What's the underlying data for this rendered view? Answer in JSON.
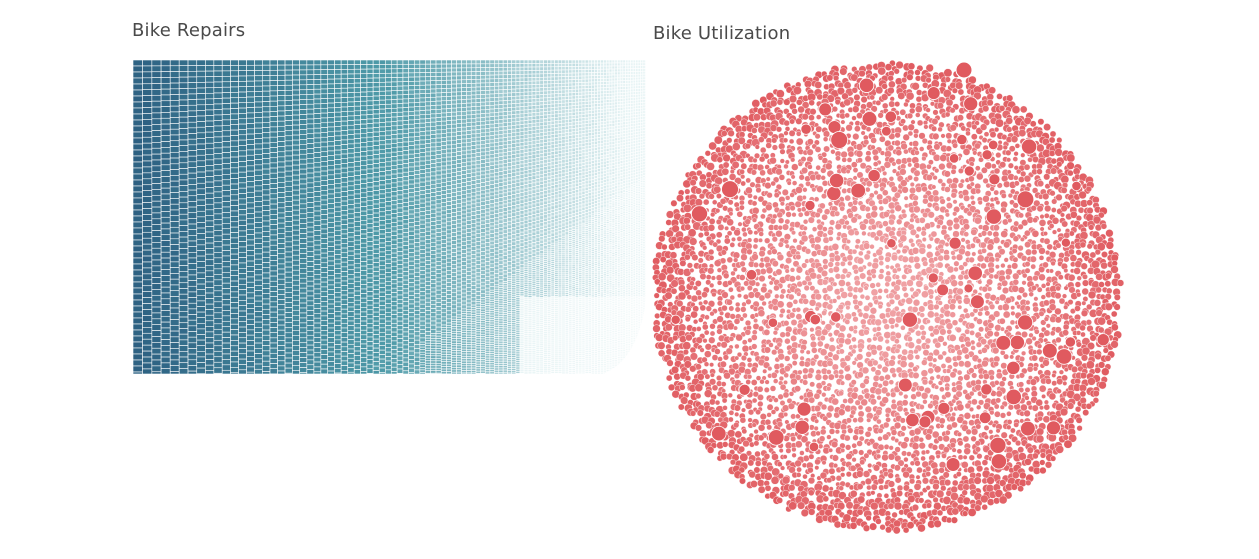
{
  "colors": {
    "background": "#ffffff",
    "title_text": "#4a4a4a",
    "repairs_dark": "#2e6283",
    "repairs_mid": "#4e9aa8",
    "repairs_light": "#e8f4f5",
    "cell_border": "#ffffff",
    "util_fill": "#e05a5f",
    "util_light": "#f0a3a6"
  },
  "chart_data": [
    {
      "type": "treemap",
      "title": "Bike Repairs",
      "color_scale": "sequential-teal",
      "legend": "none",
      "grid": false,
      "mark_count_approx": 4000
    },
    {
      "type": "packed-bubble",
      "title": "Bike Utilization",
      "color_scale": "sequential-red",
      "legend": "none",
      "grid": false,
      "mark_count_approx": 6000
    }
  ]
}
